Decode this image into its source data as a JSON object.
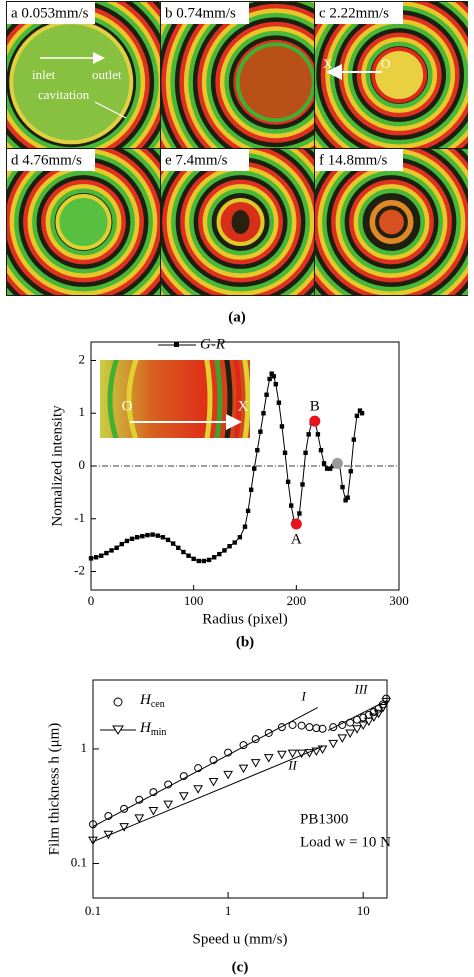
{
  "panel_a": {
    "images": [
      {
        "label": "a 0.053mm/s"
      },
      {
        "label": "b 0.74mm/s"
      },
      {
        "label": "c 2.22mm/s"
      },
      {
        "label": "d 4.76mm/s"
      },
      {
        "label": "e 7.4mm/s"
      },
      {
        "label": "f 14.8mm/s"
      }
    ],
    "annotations": [
      "inlet",
      "outlet",
      "cavitation",
      "X",
      "O"
    ],
    "caption": "(a)"
  },
  "chart_data": [
    {
      "type": "line",
      "x_label": "Radius (pixel)",
      "y_label": "Nomalized intensity",
      "caption": "(b)",
      "xlim": [
        0,
        300
      ],
      "ylim": [
        -2.35,
        2.35
      ],
      "xticks": [
        0,
        100,
        200,
        300
      ],
      "yticks": [
        -2,
        -1,
        0,
        1,
        2
      ],
      "reference_line": 0,
      "series": [
        {
          "name": "G-R",
          "color": "#000000",
          "x": [
            0,
            5,
            10,
            15,
            20,
            25,
            30,
            35,
            40,
            45,
            50,
            55,
            60,
            65,
            70,
            75,
            80,
            85,
            90,
            95,
            100,
            105,
            110,
            115,
            120,
            125,
            130,
            135,
            140,
            145,
            150,
            153,
            156,
            159,
            162,
            165,
            168,
            171,
            174,
            176,
            178,
            180,
            183,
            186,
            189,
            192,
            195,
            198,
            200,
            203,
            206,
            209,
            212,
            215,
            218,
            221,
            224,
            227,
            230,
            233,
            236,
            239,
            242,
            245,
            248,
            250,
            253,
            256,
            259,
            262,
            264
          ],
          "values": [
            -1.75,
            -1.73,
            -1.7,
            -1.65,
            -1.6,
            -1.55,
            -1.48,
            -1.42,
            -1.38,
            -1.35,
            -1.33,
            -1.31,
            -1.3,
            -1.32,
            -1.35,
            -1.4,
            -1.47,
            -1.55,
            -1.63,
            -1.7,
            -1.76,
            -1.8,
            -1.8,
            -1.78,
            -1.73,
            -1.67,
            -1.6,
            -1.52,
            -1.45,
            -1.35,
            -1.15,
            -0.85,
            -0.45,
            -0.05,
            0.3,
            0.65,
            1.0,
            1.35,
            1.65,
            1.75,
            1.7,
            1.55,
            1.2,
            0.75,
            0.25,
            -0.3,
            -0.75,
            -1.05,
            -1.1,
            -0.9,
            -0.35,
            0.25,
            0.6,
            0.82,
            0.85,
            0.6,
            0.3,
            0.05,
            -0.05,
            -0.05,
            0.0,
            0.05,
            0.05,
            -0.4,
            -0.65,
            -0.6,
            -0.1,
            0.5,
            0.95,
            1.05,
            1.0
          ]
        }
      ],
      "points": [
        {
          "label": "A",
          "x": 200,
          "value": -1.1,
          "color": "#e8141c"
        },
        {
          "label": "B",
          "x": 218,
          "value": 0.85,
          "color": "#e8141c"
        },
        {
          "x": 240,
          "value": 0.05,
          "color": "#9a9a9a"
        }
      ],
      "inset_labels": [
        "O",
        "X"
      ]
    },
    {
      "type": "loglog",
      "x_label": "Speed u (mm/s)",
      "y_label": "Film thickness h (μm)",
      "caption": "(c)",
      "xscale": "log",
      "yscale": "log",
      "xlim": [
        0.1,
        15
      ],
      "ylim": [
        0.05,
        4
      ],
      "xticks": [
        0.1,
        1,
        10
      ],
      "yticks": [
        0.1,
        1
      ],
      "x": [
        0.1,
        0.13,
        0.17,
        0.22,
        0.28,
        0.36,
        0.47,
        0.6,
        0.78,
        1.0,
        1.3,
        1.6,
        2.0,
        2.5,
        3.0,
        3.5,
        4,
        4.5,
        5,
        6,
        7,
        8,
        9,
        10,
        11,
        12,
        13,
        14,
        14.8
      ],
      "series": [
        {
          "name": "H",
          "subscript": "cen",
          "marker": "circle",
          "color": "#000000",
          "values": [
            0.22,
            0.26,
            0.3,
            0.36,
            0.42,
            0.49,
            0.58,
            0.68,
            0.8,
            0.93,
            1.08,
            1.22,
            1.38,
            1.55,
            1.62,
            1.6,
            1.55,
            1.52,
            1.5,
            1.55,
            1.62,
            1.7,
            1.8,
            1.88,
            1.98,
            2.1,
            2.25,
            2.45,
            2.75
          ]
        },
        {
          "name": "H",
          "subscript": "min",
          "marker": "triangle",
          "color": "#000000",
          "values": [
            0.16,
            0.18,
            0.21,
            0.25,
            0.29,
            0.33,
            0.39,
            0.45,
            0.52,
            0.6,
            0.68,
            0.76,
            0.84,
            0.9,
            0.92,
            0.92,
            0.93,
            0.96,
            1.0,
            1.12,
            1.25,
            1.38,
            1.5,
            1.62,
            1.75,
            1.9,
            2.05,
            2.3,
            2.6
          ]
        }
      ],
      "fits": [
        {
          "name": "I",
          "x": [
            0.1,
            4.6
          ],
          "values": [
            0.21,
            2.3
          ]
        },
        {
          "name": "II",
          "x": [
            0.1,
            5
          ],
          "values": [
            0.155,
            1.05
          ]
        },
        {
          "name": "III",
          "x": [
            5.5,
            15
          ],
          "values": [
            1.45,
            2.65
          ]
        }
      ],
      "annotations": [
        "PB1300",
        "Load w = 10 N"
      ]
    }
  ]
}
